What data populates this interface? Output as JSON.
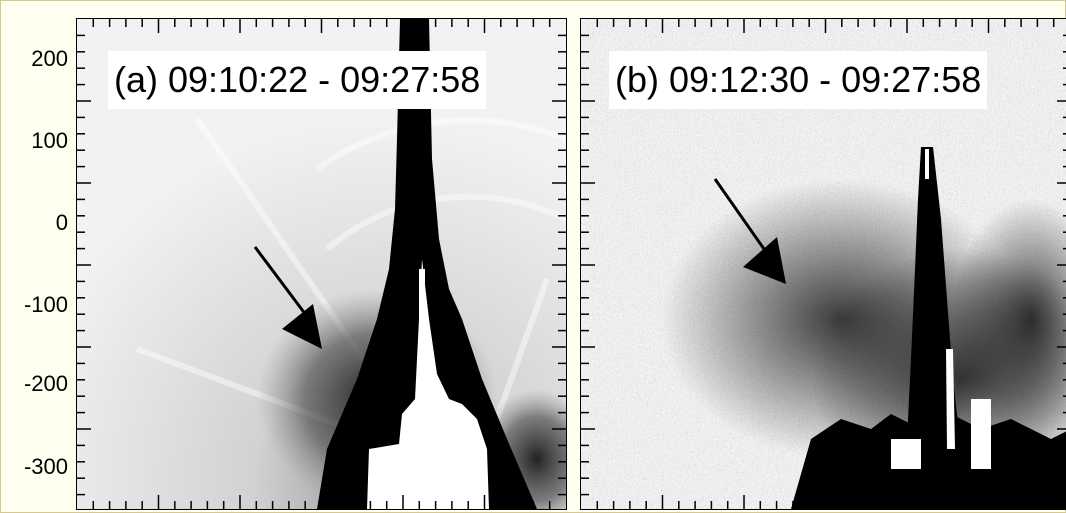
{
  "panels": [
    {
      "label": "(a) 09:10:22 - 09:27:58"
    },
    {
      "label": "(b) 09:12:30 - 09:27:58"
    }
  ],
  "y_axis": {
    "ticks": [
      "200",
      "100",
      "0",
      "-100",
      "-200",
      "-300"
    ]
  }
}
